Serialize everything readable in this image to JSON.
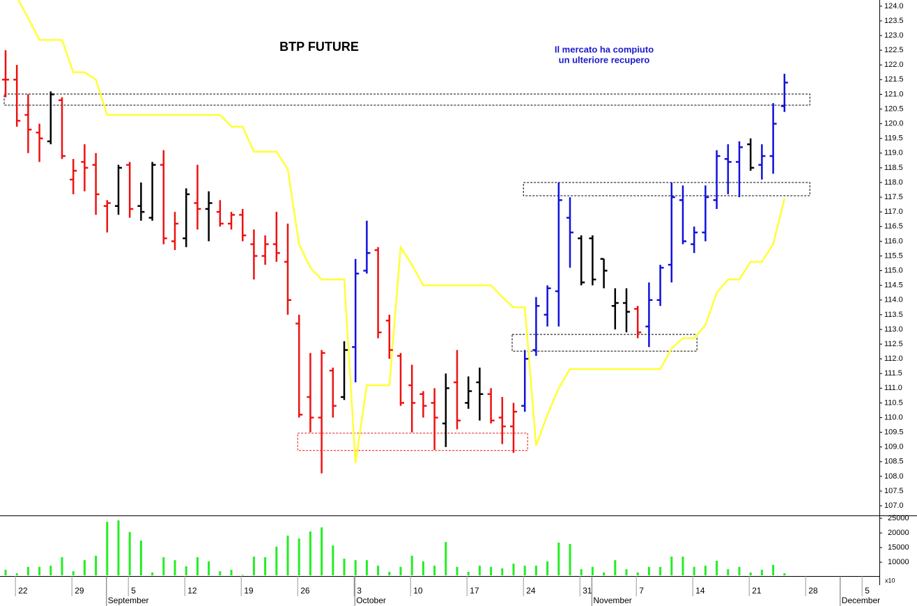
{
  "chart_data": {
    "type": "ohlc",
    "title": "BTP FUTURE",
    "annotation": [
      "Il mercato ha compiuto",
      "un ulteriore recupero"
    ],
    "categories": [
      null,
      "22",
      null,
      null,
      null,
      null,
      "29",
      null,
      null,
      null,
      null,
      "5",
      null,
      null,
      null,
      null,
      "12",
      null,
      null,
      null,
      null,
      "19",
      null,
      null,
      null,
      null,
      "26",
      null,
      null,
      null,
      null,
      "3",
      null,
      null,
      null,
      null,
      "10",
      null,
      null,
      null,
      null,
      "17",
      null,
      null,
      null,
      null,
      "24",
      null,
      null,
      null,
      null,
      "31",
      null,
      null,
      null,
      null,
      "7",
      null,
      null,
      null,
      null,
      "14",
      null,
      null,
      null,
      null,
      "21",
      null,
      null,
      null,
      null,
      "28",
      null,
      null,
      null,
      null,
      "5",
      null
    ],
    "months": [
      null,
      null,
      null,
      null,
      null,
      null,
      null,
      null,
      null,
      "September",
      null,
      null,
      null,
      null,
      null,
      null,
      null,
      null,
      null,
      null,
      null,
      null,
      null,
      null,
      null,
      null,
      null,
      null,
      null,
      null,
      null,
      "October",
      null,
      null,
      null,
      null,
      null,
      null,
      null,
      null,
      null,
      null,
      null,
      null,
      null,
      null,
      null,
      null,
      null,
      null,
      null,
      null,
      "November",
      null,
      null,
      null,
      null,
      null,
      null,
      null,
      null,
      null,
      null,
      null,
      null,
      null,
      null,
      null,
      null,
      null,
      null,
      null,
      null,
      null,
      "December",
      null,
      null,
      null
    ],
    "open": [
      121.5,
      121.5,
      120.3,
      119.7,
      119.4,
      120.8,
      118.1,
      118.7,
      118.6,
      117.2,
      117.2,
      118.6,
      117.2,
      116.8,
      118.6,
      116.0,
      116.1,
      117.3,
      117.1,
      117.0,
      116.6,
      116.9,
      115.9,
      115.5,
      115.9,
      115.3,
      113.2,
      110.7,
      110.0,
      111.6,
      110.7,
      112.4,
      115.0,
      115.7,
      113.3,
      112.1,
      111.1,
      110.8,
      110.5,
      109.8,
      111.2,
      110.5,
      111.2,
      110.8,
      110.0,
      109.7,
      110.4,
      112.3,
      113.5,
      114.3,
      116.8,
      116.1,
      116.1,
      115.4,
      113.8,
      113.9,
      113.7,
      113.1,
      114.0,
      115.2,
      117.4,
      115.9,
      116.3,
      117.4,
      118.8,
      118.7,
      119.3,
      118.6,
      118.9,
      120.6,
      null,
      null,
      null,
      null,
      null,
      null,
      null,
      null
    ],
    "high": [
      122.5,
      122.0,
      121.0,
      120.0,
      121.1,
      120.9,
      118.8,
      119.3,
      119.0,
      117.4,
      118.6,
      118.7,
      118.0,
      118.7,
      119.1,
      117.0,
      117.8,
      118.6,
      117.7,
      117.4,
      117.0,
      117.1,
      116.4,
      116.2,
      117.0,
      116.6,
      113.5,
      112.2,
      112.3,
      111.7,
      112.6,
      115.4,
      116.7,
      115.8,
      113.5,
      112.2,
      111.8,
      110.9,
      111.0,
      111.5,
      112.3,
      111.4,
      111.7,
      111.0,
      110.7,
      110.5,
      112.3,
      114.1,
      114.5,
      118.0,
      117.5,
      116.2,
      116.2,
      115.4,
      114.4,
      114.4,
      113.8,
      114.6,
      115.2,
      118.0,
      117.9,
      116.5,
      117.9,
      119.1,
      119.3,
      119.4,
      119.5,
      119.3,
      120.7,
      121.7,
      null,
      null,
      null,
      null,
      null,
      null,
      null,
      null
    ],
    "low": [
      120.9,
      119.9,
      119.0,
      118.7,
      119.3,
      118.8,
      117.6,
      117.7,
      116.9,
      116.3,
      116.9,
      116.8,
      116.7,
      116.7,
      115.9,
      115.7,
      115.8,
      116.4,
      116.0,
      116.5,
      116.4,
      116.0,
      114.7,
      115.2,
      115.3,
      113.5,
      110.0,
      109.5,
      108.1,
      110.0,
      110.6,
      111.2,
      114.9,
      112.7,
      112.0,
      110.4,
      109.5,
      110.0,
      108.9,
      109.0,
      109.6,
      110.3,
      109.9,
      109.8,
      109.1,
      108.8,
      110.2,
      112.1,
      113.1,
      113.1,
      115.1,
      114.5,
      114.5,
      114.4,
      113.0,
      112.9,
      112.7,
      112.4,
      113.8,
      114.6,
      115.9,
      115.6,
      116.0,
      117.1,
      117.6,
      117.5,
      118.4,
      118.1,
      118.3,
      120.4,
      null,
      null,
      null,
      null,
      null,
      null,
      null,
      null
    ],
    "close": [
      121.5,
      120.1,
      119.8,
      119.5,
      121.0,
      118.9,
      118.4,
      118.5,
      117.6,
      117.3,
      118.5,
      117.1,
      117.0,
      118.6,
      116.1,
      116.6,
      117.6,
      117.1,
      117.3,
      116.6,
      116.9,
      116.2,
      115.5,
      115.9,
      115.6,
      114.0,
      110.1,
      110.0,
      112.2,
      110.4,
      112.3,
      114.9,
      115.6,
      112.9,
      112.3,
      110.5,
      110.5,
      110.4,
      110.0,
      111.0,
      109.9,
      110.9,
      110.8,
      109.9,
      109.7,
      110.2,
      112.0,
      113.8,
      114.4,
      117.4,
      116.3,
      114.6,
      114.7,
      115.0,
      113.9,
      113.6,
      112.9,
      114.0,
      115.1,
      117.5,
      116.0,
      116.3,
      117.5,
      118.9,
      118.7,
      119.2,
      118.5,
      118.9,
      120.0,
      121.4,
      null,
      null,
      null,
      null,
      null,
      null,
      null,
      null
    ],
    "bar_colors": [
      "#ee1111",
      "#ee1111",
      "#ee1111",
      "#ee1111",
      "#000000",
      "#ee1111",
      "#ee1111",
      "#ee1111",
      "#ee1111",
      "#ee1111",
      "#000000",
      "#ee1111",
      "#000000",
      "#000000",
      "#ee1111",
      "#ee1111",
      "#000000",
      "#ee1111",
      "#000000",
      "#ee1111",
      "#ee1111",
      "#ee1111",
      "#ee1111",
      "#ee1111",
      "#ee1111",
      "#ee1111",
      "#ee1111",
      "#ee1111",
      "#ee1111",
      "#ee1111",
      "#000000",
      "#1111dd",
      "#1111dd",
      "#ee1111",
      "#ee1111",
      "#ee1111",
      "#ee1111",
      "#ee1111",
      "#ee1111",
      "#000000",
      "#ee1111",
      "#000000",
      "#000000",
      "#ee1111",
      "#ee1111",
      "#ee1111",
      "#1111dd",
      "#1111dd",
      "#1111dd",
      "#1111dd",
      "#1111dd",
      "#000000",
      "#000000",
      "#000000",
      "#000000",
      "#000000",
      "#ee1111",
      "#1111dd",
      "#1111dd",
      "#1111dd",
      "#1111dd",
      "#1111dd",
      "#1111dd",
      "#1111dd",
      "#1111dd",
      "#1111dd",
      "#000000",
      "#1111dd",
      "#1111dd",
      "#1111dd",
      null,
      null,
      null,
      null,
      null,
      null,
      null,
      null
    ],
    "trend": {
      "color": "#ffff33",
      "values": [
        null,
        124.3,
        123.6,
        122.85,
        122.85,
        122.85,
        121.75,
        121.75,
        121.5,
        120.3,
        120.3,
        120.3,
        120.3,
        120.3,
        120.3,
        120.3,
        120.3,
        120.3,
        120.3,
        120.3,
        119.9,
        119.9,
        119.05,
        119.05,
        119.05,
        118.45,
        115.9,
        115.1,
        114.7,
        114.7,
        114.7,
        108.45,
        111.1,
        111.1,
        111.1,
        115.8,
        115.2,
        114.5,
        114.5,
        114.5,
        114.5,
        114.5,
        114.5,
        114.5,
        114.1,
        113.75,
        113.75,
        109.05,
        110.1,
        111.0,
        111.65,
        111.65,
        111.65,
        111.65,
        111.65,
        111.65,
        111.65,
        111.65,
        111.65,
        112.35,
        112.7,
        112.7,
        113.15,
        114.25,
        114.7,
        114.7,
        115.3,
        115.3,
        115.9,
        117.45,
        null,
        null,
        null,
        null,
        null,
        null,
        null,
        null
      ]
    },
    "zones": [
      {
        "low": 120.63,
        "high": 121.01,
        "start": 0,
        "end": 71,
        "color": "#000000"
      },
      {
        "low": 108.88,
        "high": 109.47,
        "start": 26,
        "end": 46,
        "color": "#ee1111"
      },
      {
        "low": 112.26,
        "high": 112.83,
        "start": 45,
        "end": 61,
        "color": "#000000"
      },
      {
        "low": 117.55,
        "high": 118.0,
        "start": 46,
        "end": 71,
        "color": "#000000"
      }
    ],
    "ylim": [
      106.67,
      124.21
    ],
    "yticks": [
      {
        "value": 107,
        "label": "107.0"
      },
      {
        "value": 107.5,
        "label": "107.5"
      },
      {
        "value": 108,
        "label": "108.0"
      },
      {
        "value": 108.5,
        "label": "108.5"
      },
      {
        "value": 109,
        "label": "109.0"
      },
      {
        "value": 109.5,
        "label": "109.5"
      },
      {
        "value": 110,
        "label": "110.0"
      },
      {
        "value": 110.5,
        "label": "110.5"
      },
      {
        "value": 111,
        "label": "111.0"
      },
      {
        "value": 111.5,
        "label": "111.5"
      },
      {
        "value": 112,
        "label": "112.0"
      },
      {
        "value": 112.5,
        "label": "112.5"
      },
      {
        "value": 113,
        "label": "113.0"
      },
      {
        "value": 113.5,
        "label": "113.5"
      },
      {
        "value": 114,
        "label": "114.0"
      },
      {
        "value": 114.5,
        "label": "114.5"
      },
      {
        "value": 115,
        "label": "115.0"
      },
      {
        "value": 115.5,
        "label": "115.5"
      },
      {
        "value": 116,
        "label": "116.0"
      },
      {
        "value": 116.5,
        "label": "116.5"
      },
      {
        "value": 117,
        "label": "117.0"
      },
      {
        "value": 117.5,
        "label": "117.5"
      },
      {
        "value": 118,
        "label": "118.0"
      },
      {
        "value": 118.5,
        "label": "118.5"
      },
      {
        "value": 119,
        "label": "119.0"
      },
      {
        "value": 119.5,
        "label": "119.5"
      },
      {
        "value": 120,
        "label": "120.0"
      },
      {
        "value": 120.5,
        "label": "120.5"
      },
      {
        "value": 121,
        "label": "121.0"
      },
      {
        "value": 121.5,
        "label": "121.5"
      },
      {
        "value": 122,
        "label": "122.0"
      },
      {
        "value": 122.5,
        "label": "122.5"
      },
      {
        "value": 123,
        "label": "123.0"
      },
      {
        "value": 123.5,
        "label": "123.5"
      },
      {
        "value": 124,
        "label": "124.0"
      }
    ],
    "volume": {
      "color": "#22ee22",
      "unit_note": "x10",
      "values": [
        7400,
        6200,
        8400,
        8400,
        8800,
        11700,
        6900,
        10700,
        12200,
        23800,
        24300,
        20300,
        17400,
        6500,
        11700,
        10700,
        8600,
        11700,
        10300,
        6900,
        7400,
        5700,
        11900,
        11700,
        15300,
        19100,
        18100,
        20500,
        21900,
        15700,
        11200,
        10700,
        10700,
        8800,
        6700,
        8400,
        12200,
        10300,
        8800,
        16900,
        8400,
        6700,
        8800,
        8400,
        7900,
        9500,
        8800,
        8800,
        10300,
        16700,
        16200,
        7600,
        8400,
        6500,
        10700,
        7600,
        6500,
        8400,
        8400,
        11900,
        11900,
        8400,
        8800,
        10500,
        7600,
        8400,
        6500,
        7400,
        9100,
        6200,
        null,
        null,
        null,
        null,
        null,
        null,
        null,
        null
      ],
      "ylim": [
        5500,
        25500
      ],
      "yticks": [
        10000,
        15000,
        20000,
        25000
      ]
    }
  }
}
